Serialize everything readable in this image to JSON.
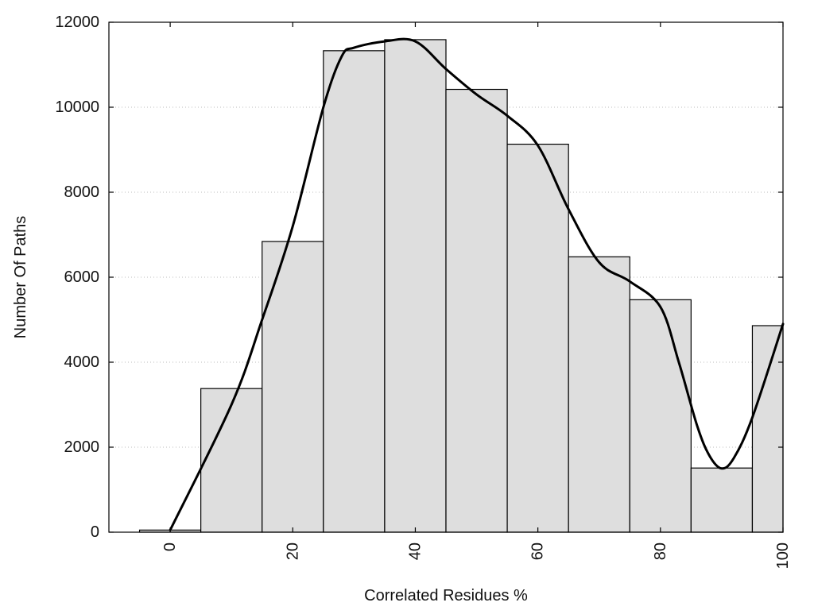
{
  "chart_data": {
    "type": "bar",
    "title": "",
    "xlabel": "Correlated Residues %",
    "ylabel": "Number Of Paths",
    "xlim": [
      -10,
      100
    ],
    "ylim": [
      0,
      12000
    ],
    "x_ticks": [
      0,
      20,
      40,
      60,
      80,
      100
    ],
    "y_ticks": [
      0,
      2000,
      4000,
      6000,
      8000,
      10000,
      12000
    ],
    "grid": "horizontal dotted",
    "bin_width": 10,
    "bins": [
      {
        "center": 0,
        "value": 50
      },
      {
        "center": 10,
        "value": 3380
      },
      {
        "center": 20,
        "value": 6840
      },
      {
        "center": 30,
        "value": 11330
      },
      {
        "center": 40,
        "value": 11590
      },
      {
        "center": 50,
        "value": 10420
      },
      {
        "center": 60,
        "value": 9130
      },
      {
        "center": 70,
        "value": 6480
      },
      {
        "center": 80,
        "value": 5470
      },
      {
        "center": 90,
        "value": 1510
      },
      {
        "center": 100,
        "value": 4860
      }
    ],
    "curve": {
      "x": [
        0,
        10,
        15,
        20,
        25,
        28,
        30,
        35,
        40,
        45,
        50,
        55,
        60,
        65,
        70,
        75,
        80,
        83,
        86,
        88,
        90,
        92,
        95,
        100
      ],
      "y": [
        50,
        3000,
        5000,
        7200,
        10000,
        11200,
        11400,
        11550,
        11550,
        10900,
        10300,
        9800,
        9100,
        7600,
        6350,
        5900,
        5300,
        4000,
        2500,
        1800,
        1500,
        1750,
        2700,
        4900
      ]
    },
    "colors": {
      "bar_fill": "#dedede",
      "bar_stroke": "#000000",
      "curve": "#000000",
      "grid": "#bbbbbb"
    }
  }
}
